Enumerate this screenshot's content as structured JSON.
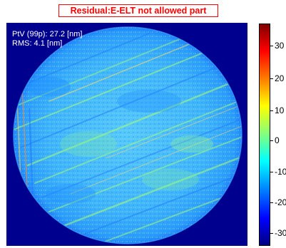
{
  "figure": {
    "title": "Residual:E-ELT not allowed part",
    "title_color": "#ff0000",
    "stats": {
      "ptv": "PtV (99p): 27.2 [nm]",
      "rms": "RMS: 4.1 [nm]"
    },
    "background_color": "#00008f",
    "colormap": "jet"
  },
  "colorbar": {
    "ticks": [
      "30",
      "20",
      "10",
      "0",
      "-10",
      "-20",
      "-30"
    ]
  }
}
